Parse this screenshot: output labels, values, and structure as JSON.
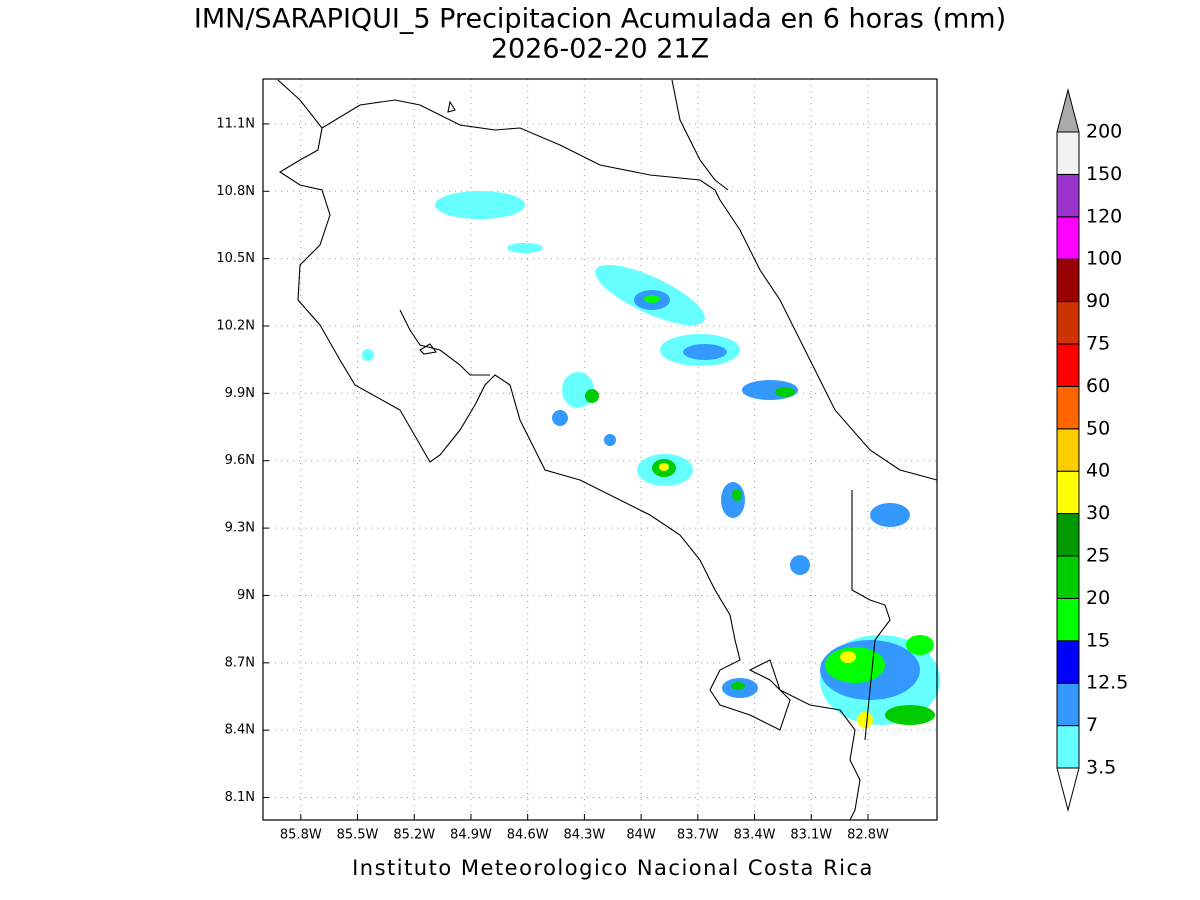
{
  "map": {
    "title": "IMN/SARAPIQUI_5 Precipitacion Acumulada en 6 horas (mm)",
    "subtitle": "2026-02-20 21Z",
    "footer": "Instituto Meteorologico Nacional Costa Rica",
    "lon_range": [
      -86.0,
      -82.435
    ],
    "lat_range": [
      8.0,
      11.3
    ],
    "grid": true,
    "lon_ticks": [
      {
        "value": -85.8,
        "label": "85.8W"
      },
      {
        "value": -85.5,
        "label": "85.5W"
      },
      {
        "value": -85.2,
        "label": "85.2W"
      },
      {
        "value": -84.9,
        "label": "84.9W"
      },
      {
        "value": -84.6,
        "label": "84.6W"
      },
      {
        "value": -84.3,
        "label": "84.3W"
      },
      {
        "value": -84.0,
        "label": "84W"
      },
      {
        "value": -83.7,
        "label": "83.7W"
      },
      {
        "value": -83.4,
        "label": "83.4W"
      },
      {
        "value": -83.1,
        "label": "83.1W"
      },
      {
        "value": -82.8,
        "label": "82.8W"
      }
    ],
    "lat_ticks": [
      {
        "value": 11.1,
        "label": "11.1N"
      },
      {
        "value": 10.8,
        "label": "10.8N"
      },
      {
        "value": 10.5,
        "label": "10.5N"
      },
      {
        "value": 10.2,
        "label": "10.2N"
      },
      {
        "value": 9.9,
        "label": "9.9N"
      },
      {
        "value": 9.6,
        "label": "9.6N"
      },
      {
        "value": 9.3,
        "label": "9.3N"
      },
      {
        "value": 9.0,
        "label": "9N"
      },
      {
        "value": 8.7,
        "label": "8.7N"
      },
      {
        "value": 8.4,
        "label": "8.4N"
      },
      {
        "value": 8.1,
        "label": "8.1N"
      }
    ],
    "colorbar": {
      "levels": [
        3.5,
        7,
        12.5,
        15,
        20,
        25,
        30,
        40,
        50,
        60,
        75,
        90,
        100,
        120,
        150,
        200
      ],
      "colors": [
        "#66ffff",
        "#3399ff",
        "#0000ff",
        "#00ff00",
        "#00cc00",
        "#009900",
        "#ffff00",
        "#ffcc00",
        "#ff6600",
        "#ff0000",
        "#cc3300",
        "#990000",
        "#ff00ff",
        "#9933cc",
        "#f2f2f2"
      ],
      "under_color": "#ffffff",
      "over_color": "#aaaaaa"
    }
  }
}
